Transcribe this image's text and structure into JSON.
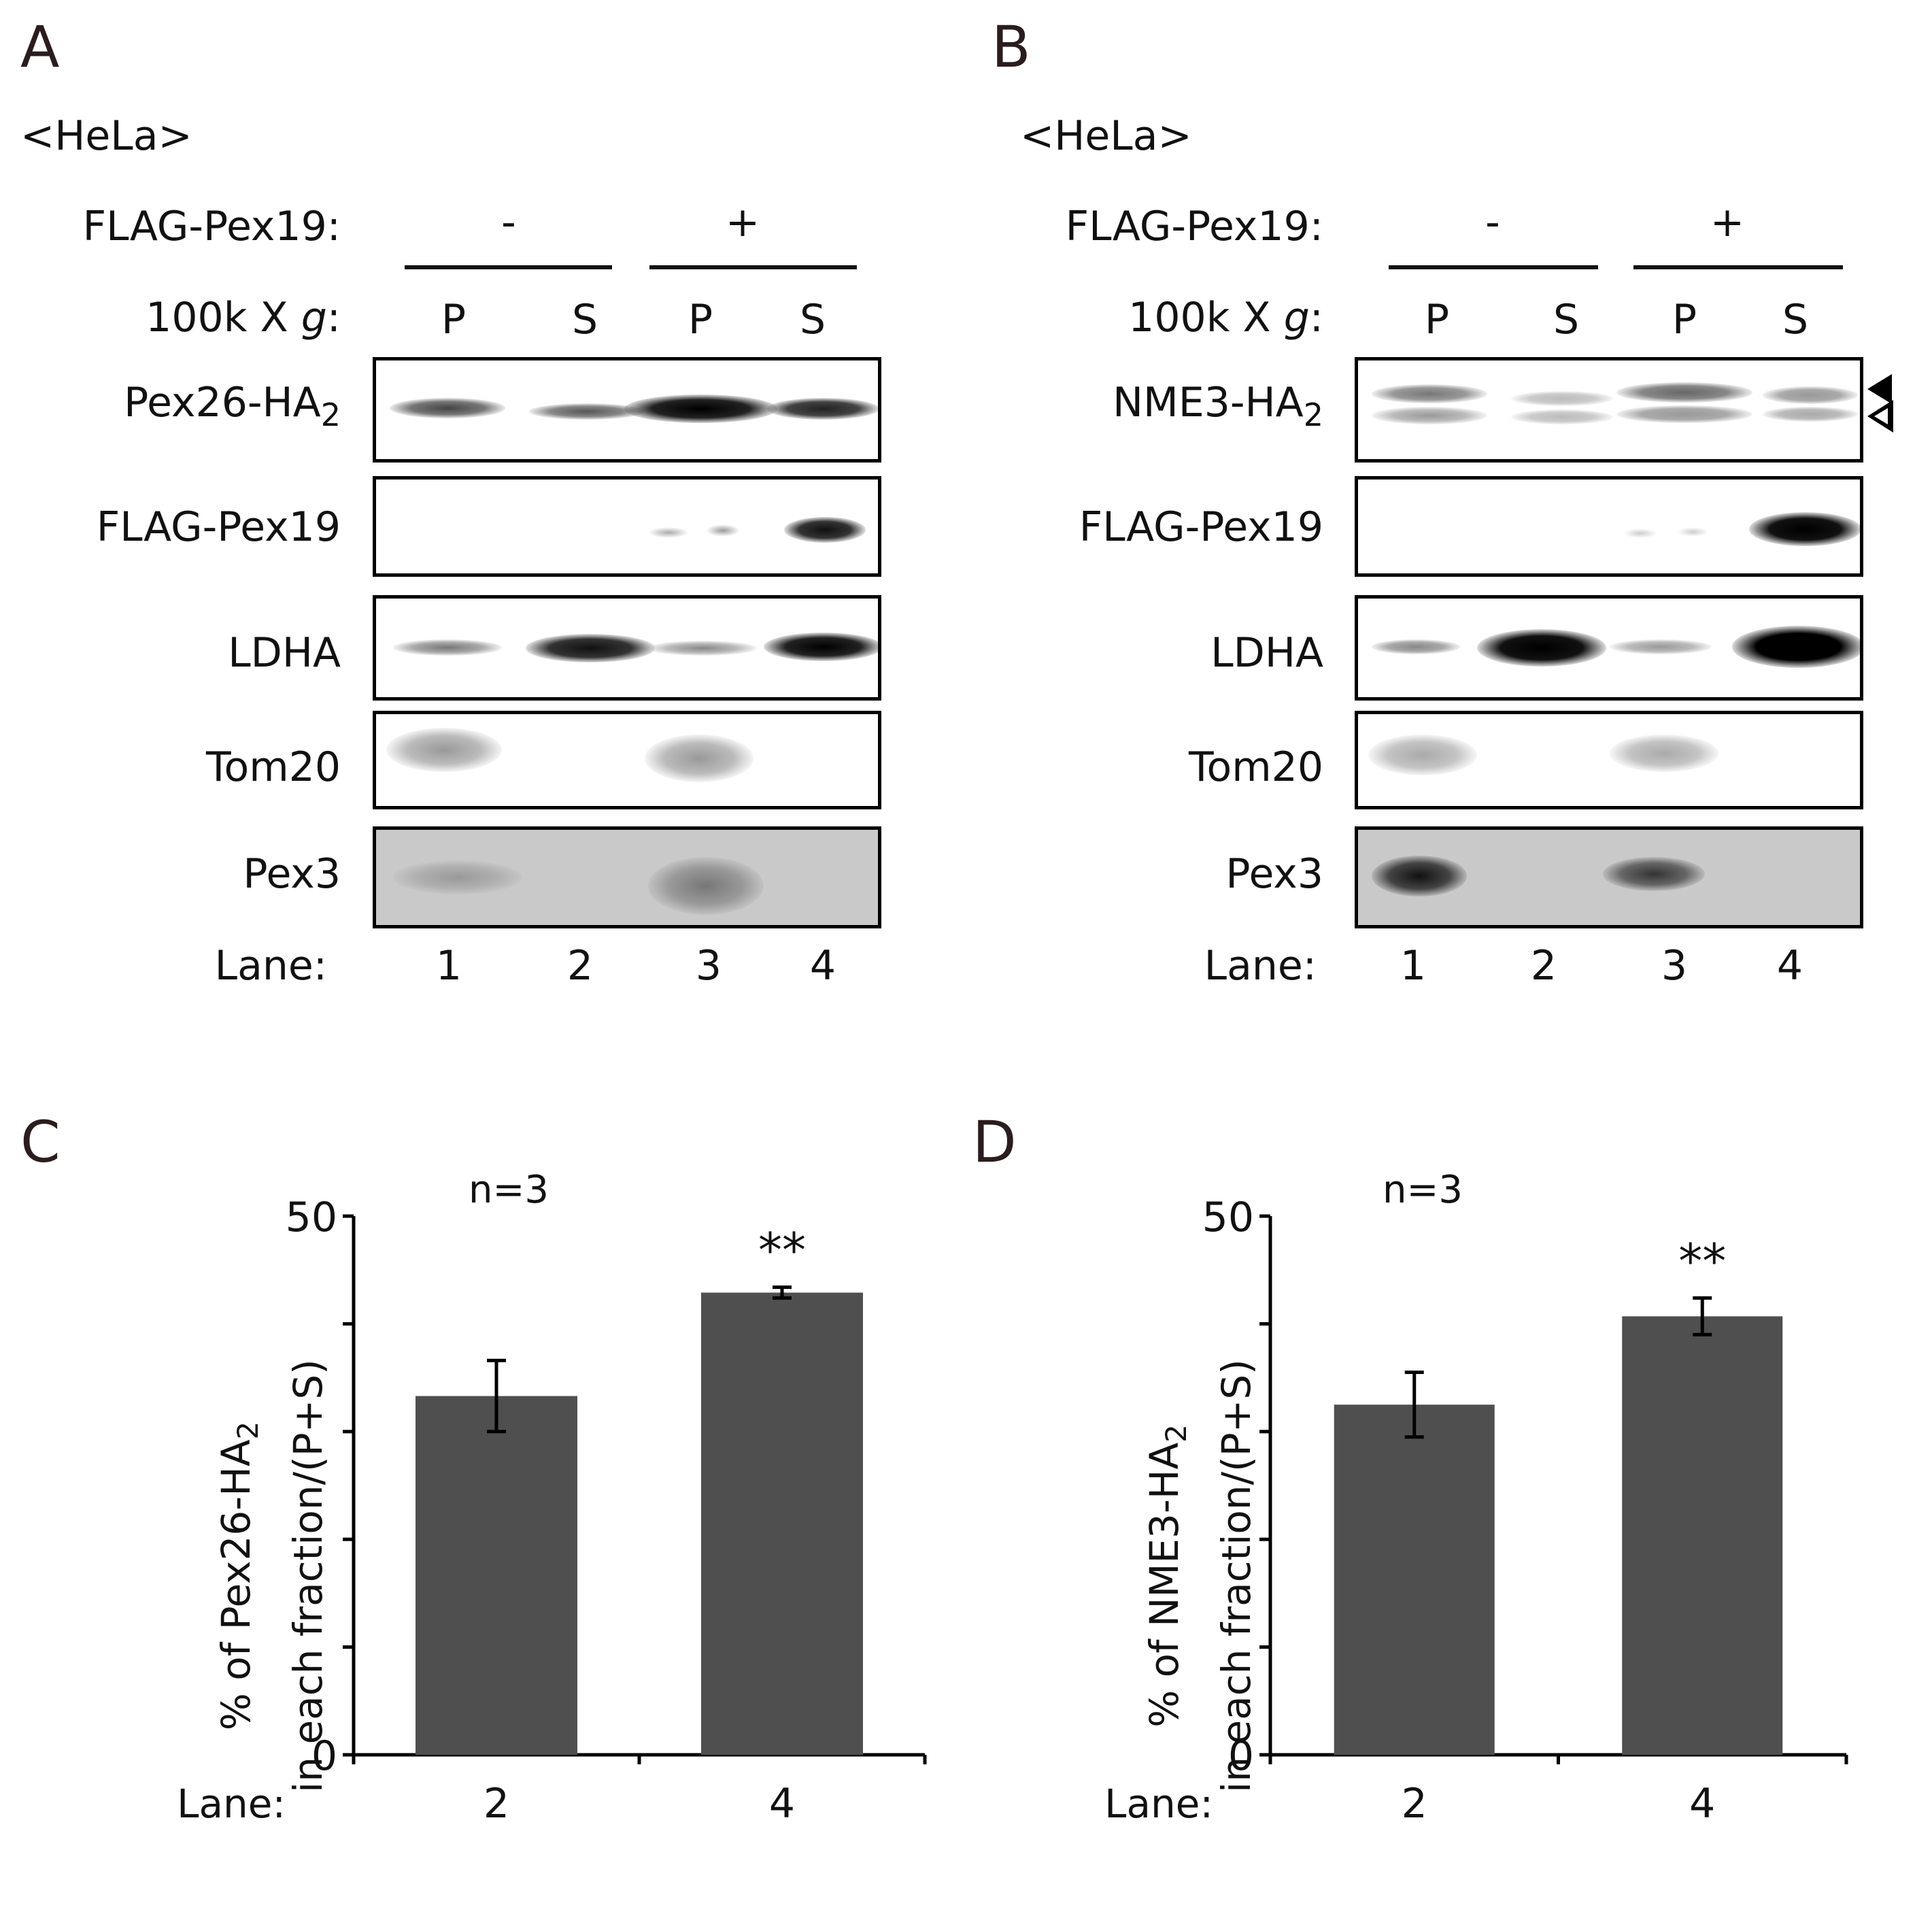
{
  "panelA": {
    "letter": "A",
    "cell": "<HeLa>",
    "flag_label": "FLAG-Pex19:",
    "minus": "-",
    "plus": "+",
    "g_prefix": "100k X ",
    "g_italic": "g",
    "g_colon": ":",
    "fractions": [
      "P",
      "S",
      "P",
      "S"
    ],
    "blots": [
      {
        "name_main": "Pex26-HA",
        "name_sub": "2"
      },
      {
        "name_main": "FLAG-Pex19",
        "name_sub": ""
      },
      {
        "name_main": "LDHA",
        "name_sub": ""
      },
      {
        "name_main": "Tom20",
        "name_sub": ""
      },
      {
        "name_main": "Pex3",
        "name_sub": ""
      }
    ],
    "lane_label": "Lane:",
    "lanes": [
      "1",
      "2",
      "3",
      "4"
    ]
  },
  "panelB": {
    "letter": "B",
    "cell": "<HeLa>",
    "flag_label": "FLAG-Pex19:",
    "minus": "-",
    "plus": "+",
    "g_prefix": "100k X ",
    "g_italic": "g",
    "g_colon": ":",
    "fractions": [
      "P",
      "S",
      "P",
      "S"
    ],
    "blots": [
      {
        "name_main": "NME3-HA",
        "name_sub": "2"
      },
      {
        "name_main": "FLAG-Pex19",
        "name_sub": ""
      },
      {
        "name_main": "LDHA",
        "name_sub": ""
      },
      {
        "name_main": "Tom20",
        "name_sub": ""
      },
      {
        "name_main": "Pex3",
        "name_sub": ""
      }
    ],
    "lane_label": "Lane:",
    "lanes": [
      "1",
      "2",
      "3",
      "4"
    ]
  },
  "chart_data": [
    {
      "panel": "C",
      "type": "bar",
      "title": "n=3",
      "ylabel_line1_main": "% of Pex26-HA",
      "ylabel_line1_sub": "2",
      "ylabel_line2": "in each fraction/(P+S)",
      "xlabel": "Lane:",
      "categories": [
        "2",
        "4"
      ],
      "values": [
        33.3,
        42.9
      ],
      "errors": [
        3.3,
        0.5
      ],
      "annotations": [
        "",
        "**"
      ],
      "ylim": [
        0,
        50
      ],
      "yticks_labeled": [
        "0",
        "50"
      ],
      "ytick_step": 10,
      "bar_color": "#4f4f4f"
    },
    {
      "panel": "D",
      "type": "bar",
      "title": "n=3",
      "ylabel_line1_main": "% of NME3-HA",
      "ylabel_line1_sub": "2",
      "ylabel_line2": "in each fraction/(P+S)",
      "xlabel": "Lane:",
      "categories": [
        "2",
        "4"
      ],
      "values": [
        32.5,
        40.7
      ],
      "errors": [
        3.0,
        1.7
      ],
      "annotations": [
        "",
        "**"
      ],
      "ylim": [
        0,
        50
      ],
      "yticks_labeled": [
        "0",
        "50"
      ],
      "ytick_step": 10,
      "bar_color": "#4f4f4f"
    }
  ]
}
